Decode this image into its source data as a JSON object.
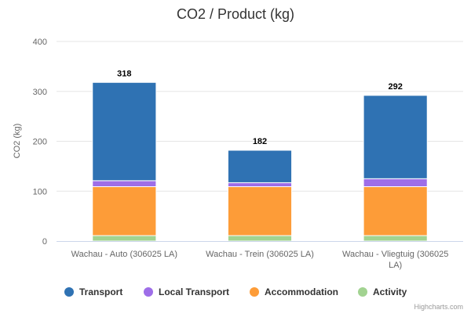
{
  "chart_data": {
    "type": "bar",
    "stacked": true,
    "title": "CO2 / Product (kg)",
    "xlabel": "",
    "ylabel": "CO2 (kg)",
    "ylim": [
      0,
      400
    ],
    "yticks": [
      0,
      100,
      200,
      300,
      400
    ],
    "grid": true,
    "legend_position": "bottom",
    "categories": [
      [
        "Wachau - Auto (306025 LA)"
      ],
      [
        "Wachau - Trein (306025 LA)"
      ],
      [
        "Wachau - Vliegtuig (306025",
        "LA)"
      ]
    ],
    "series": [
      {
        "name": "Activity",
        "color": "#a2d391",
        "values": [
          11,
          11,
          11
        ]
      },
      {
        "name": "Accommodation",
        "color": "#fd9c38",
        "values": [
          98,
          98,
          98
        ]
      },
      {
        "name": "Local Transport",
        "color": "#9e6ee8",
        "values": [
          12,
          8,
          16
        ]
      },
      {
        "name": "Transport",
        "color": "#2f72b3",
        "values": [
          197,
          65,
          167
        ]
      }
    ],
    "totals": [
      318,
      182,
      292
    ],
    "legend_order": [
      "Transport",
      "Local Transport",
      "Accommodation",
      "Activity"
    ]
  },
  "credits": "Highcharts.com"
}
